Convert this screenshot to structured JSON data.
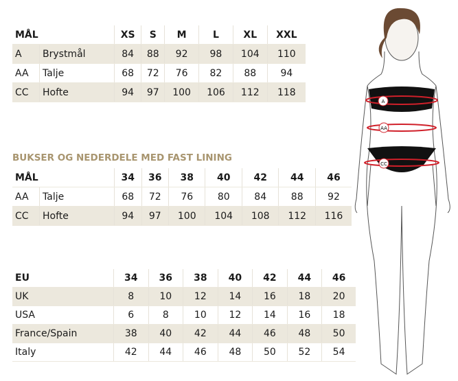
{
  "table1": {
    "header": [
      "MÅL",
      "XS",
      "S",
      "M",
      "L",
      "XL",
      "XXL"
    ],
    "rows": [
      [
        "A",
        "Brystmål",
        "84",
        "88",
        "92",
        "98",
        "104",
        "110"
      ],
      [
        "AA",
        "Talje",
        "68",
        "72",
        "76",
        "82",
        "88",
        "94"
      ],
      [
        "CC",
        "Hofte",
        "94",
        "97",
        "100",
        "106",
        "112",
        "118"
      ]
    ]
  },
  "table2": {
    "title": "BUKSER OG NEDERDELE MED FAST LINING",
    "header": [
      "MÅL",
      "34",
      "36",
      "38",
      "40",
      "42",
      "44",
      "46"
    ],
    "rows": [
      [
        "AA",
        "Talje",
        "68",
        "72",
        "76",
        "80",
        "84",
        "88",
        "92"
      ],
      [
        "CC",
        "Hofte",
        "94",
        "97",
        "100",
        "104",
        "108",
        "112",
        "116"
      ]
    ]
  },
  "table3": {
    "header": [
      "EU",
      "34",
      "36",
      "38",
      "40",
      "42",
      "44",
      "46"
    ],
    "rows": [
      [
        "UK",
        "8",
        "10",
        "12",
        "14",
        "16",
        "18",
        "20"
      ],
      [
        "USA",
        "6",
        "8",
        "10",
        "12",
        "14",
        "16",
        "18"
      ],
      [
        "France/Spain",
        "38",
        "40",
        "42",
        "44",
        "46",
        "48",
        "50"
      ],
      [
        "Italy",
        "42",
        "44",
        "46",
        "48",
        "50",
        "52",
        "54"
      ]
    ]
  },
  "figure": {
    "labels": [
      "A",
      "AA",
      "CC"
    ],
    "accent": "#d0202a",
    "shade": "#ece8dd",
    "title_color": "#a8956f"
  }
}
